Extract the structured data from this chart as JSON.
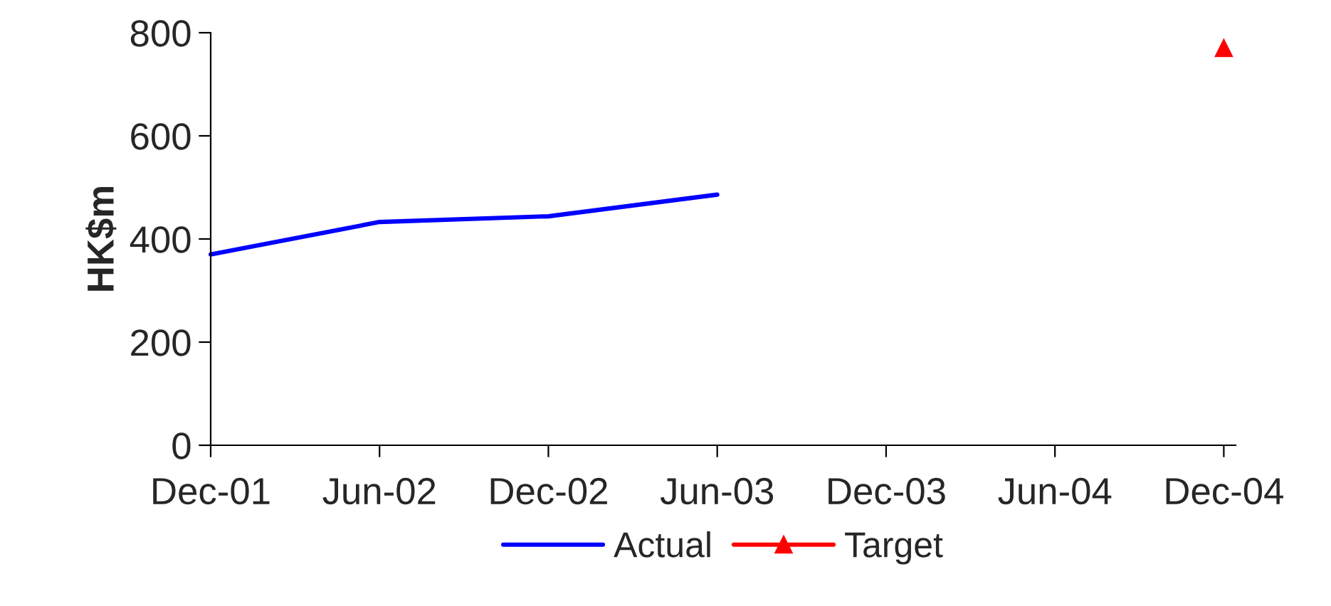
{
  "chart_data": {
    "type": "line",
    "ylabel": "HK$m",
    "categories": [
      "Dec-01",
      "Jun-02",
      "Dec-02",
      "Jun-03",
      "Dec-03",
      "Jun-04",
      "Dec-04"
    ],
    "series": [
      {
        "name": "Actual",
        "color": "#0000ff",
        "marker": "none",
        "values": [
          370,
          433,
          444,
          486,
          null,
          null,
          null
        ]
      },
      {
        "name": "Target",
        "color": "#ff0000",
        "marker": "triangle",
        "values": [
          null,
          null,
          null,
          null,
          null,
          null,
          770
        ]
      }
    ],
    "ylim": [
      0,
      800
    ],
    "yticks": [
      0,
      200,
      400,
      600,
      800
    ],
    "grid": false,
    "legend": "bottom"
  }
}
